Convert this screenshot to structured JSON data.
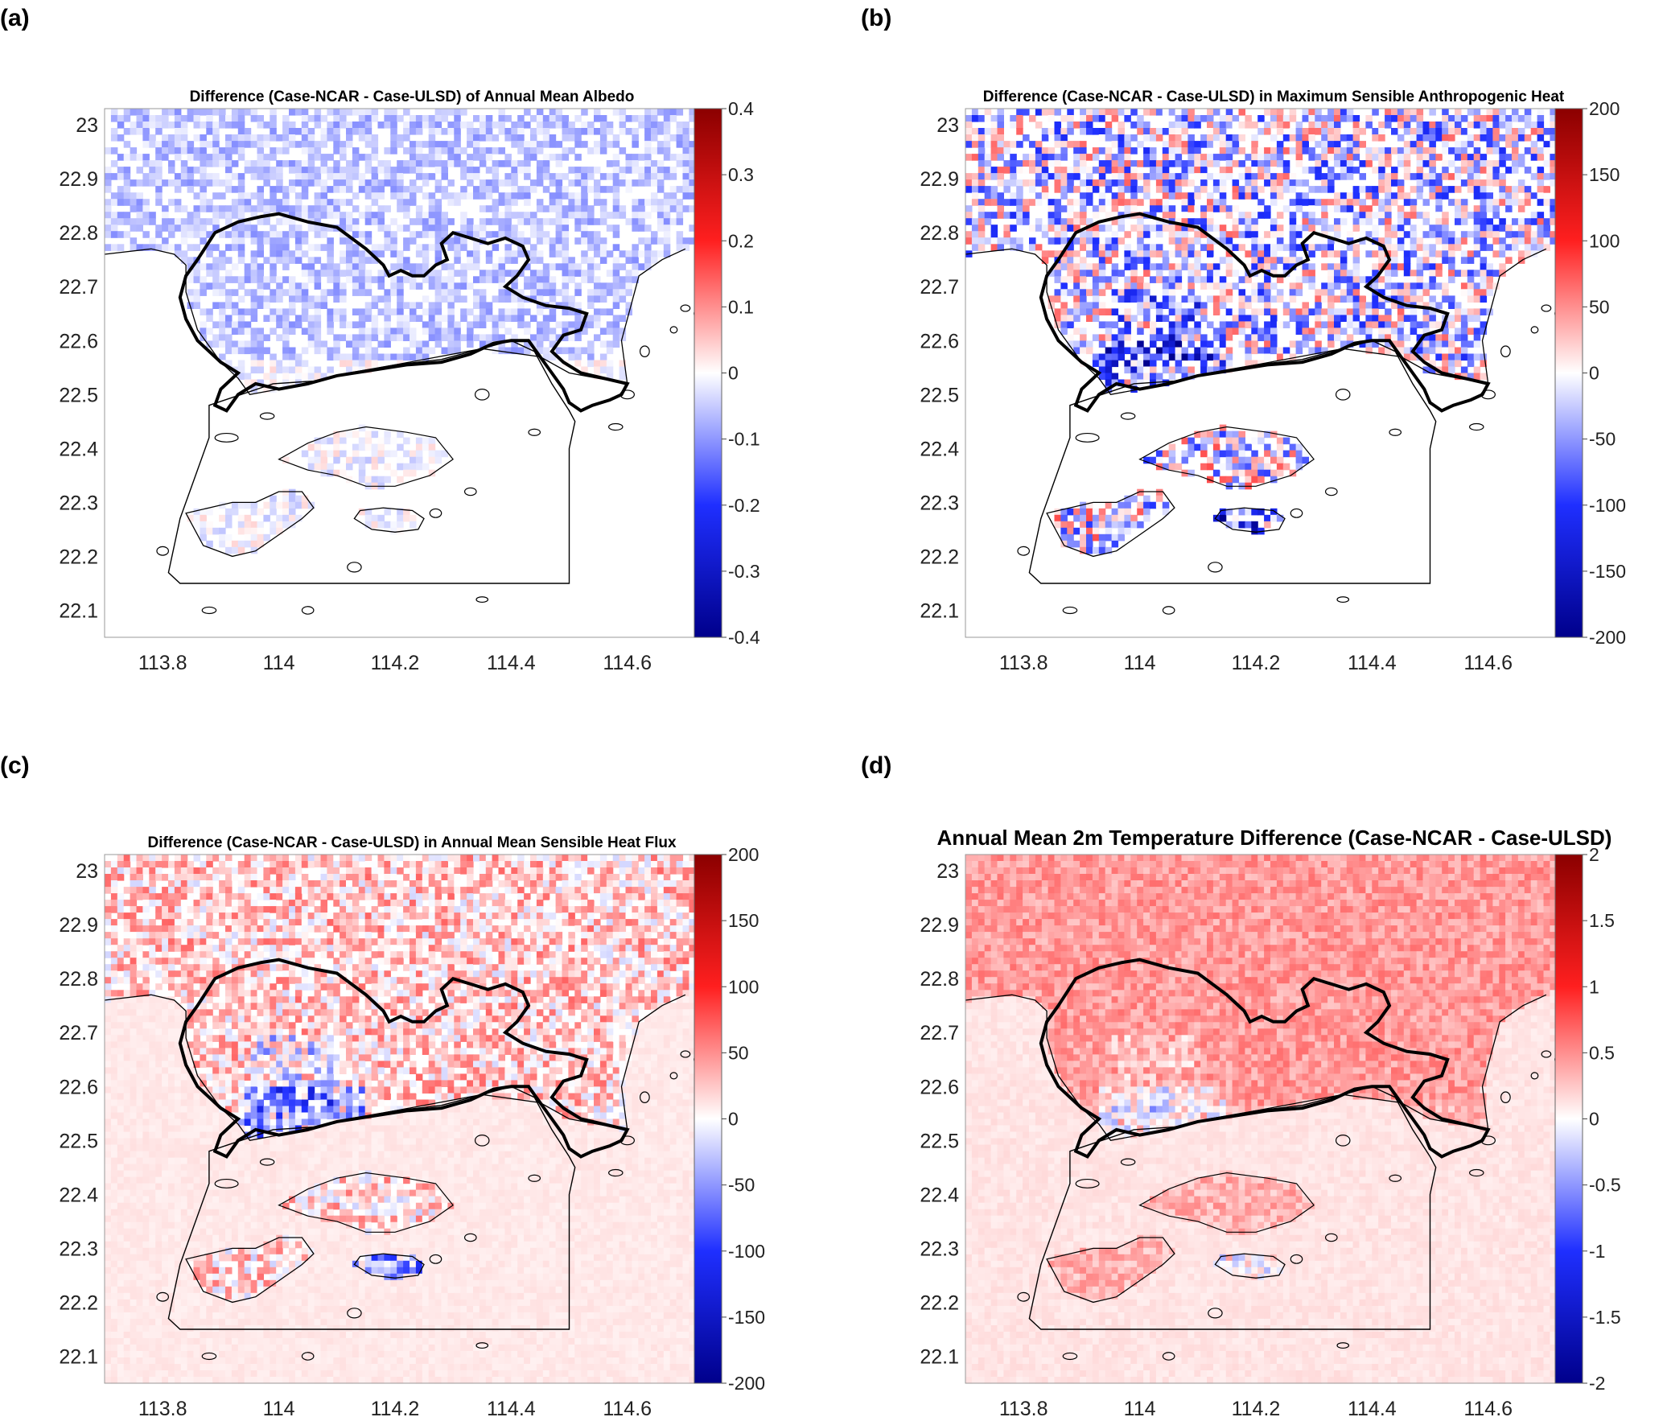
{
  "figure": {
    "colors": {
      "negative_max": "#00008b",
      "negative_mid": "#1f2fff",
      "neutral": "#ffffff",
      "positive_mid": "#ff1f1f",
      "positive_max": "#8b0000",
      "coast": "#000000"
    }
  },
  "chart_data": [
    {
      "type": "heatmap",
      "panel_label": "(a)",
      "title": "Difference (Case-NCAR - Case-ULSD) of Annual Mean Albedo",
      "xlabel": "",
      "ylabel": "",
      "x_ticks": [
        "113.8",
        "114",
        "114.2",
        "114.4",
        "114.6"
      ],
      "y_ticks": [
        "23",
        "22.9",
        "22.8",
        "22.7",
        "22.6",
        "22.5",
        "22.4",
        "22.3",
        "22.2",
        "22.1"
      ],
      "xlim": [
        113.7,
        114.75
      ],
      "ylim": [
        22.05,
        23.03
      ],
      "colorbar": {
        "ticks": [
          "0.4",
          "0.3",
          "0.2",
          "0.1",
          "0",
          "-0.1",
          "-0.2",
          "-0.3",
          "-0.4"
        ],
        "range": [
          -0.4,
          0.4
        ]
      },
      "pattern": {
        "land_bias": -0.06,
        "amplitude": 0.05,
        "hk_bias": -0.01,
        "extreme_hotspot": 0.0,
        "sea_value": 0.0,
        "neutral_fraction": 0.35
      }
    },
    {
      "type": "heatmap",
      "panel_label": "(b)",
      "title": "Difference (Case-NCAR - Case-ULSD) in Maximum Sensible Anthropogenic Heat",
      "xlabel": "",
      "ylabel": "",
      "x_ticks": [
        "113.8",
        "114",
        "114.2",
        "114.4",
        "114.6"
      ],
      "y_ticks": [
        "23",
        "22.9",
        "22.8",
        "22.7",
        "22.6",
        "22.5",
        "22.4",
        "22.3",
        "22.2",
        "22.1"
      ],
      "xlim": [
        113.7,
        114.75
      ],
      "ylim": [
        22.05,
        23.03
      ],
      "colorbar": {
        "ticks": [
          "200",
          "150",
          "100",
          "50",
          "0",
          "-50",
          "-100",
          "-150",
          "-200"
        ],
        "range": [
          -200,
          200
        ]
      },
      "pattern": {
        "land_bias": -20,
        "amplitude": 90,
        "hk_bias": -10,
        "extreme_hotspot": -200,
        "sea_value": 0,
        "neutral_fraction": 0.3
      }
    },
    {
      "type": "heatmap",
      "panel_label": "(c)",
      "title": "Difference (Case-NCAR - Case-ULSD) in Annual Mean Sensible Heat Flux",
      "xlabel": "",
      "ylabel": "",
      "x_ticks": [
        "113.8",
        "114",
        "114.2",
        "114.4",
        "114.6"
      ],
      "y_ticks": [
        "23",
        "22.9",
        "22.8",
        "22.7",
        "22.6",
        "22.5",
        "22.4",
        "22.3",
        "22.2",
        "22.1"
      ],
      "xlim": [
        113.7,
        114.75
      ],
      "ylim": [
        22.05,
        23.03
      ],
      "colorbar": {
        "ticks": [
          "200",
          "150",
          "100",
          "50",
          "0",
          "-50",
          "-100",
          "-150",
          "-200"
        ],
        "range": [
          -200,
          200
        ]
      },
      "pattern": {
        "land_bias": 25,
        "amplitude": 45,
        "hk_bias": 20,
        "extreme_hotspot": -180,
        "sea_value": 10,
        "neutral_fraction": 0.15
      }
    },
    {
      "type": "heatmap",
      "panel_label": "(d)",
      "title": "Annual Mean 2m Temperature  Difference (Case-NCAR - Case-ULSD)",
      "xlabel": "",
      "ylabel": "",
      "x_ticks": [
        "113.8",
        "114",
        "114.2",
        "114.4",
        "114.6"
      ],
      "y_ticks": [
        "23",
        "22.9",
        "22.8",
        "22.7",
        "22.6",
        "22.5",
        "22.4",
        "22.3",
        "22.2",
        "22.1"
      ],
      "xlim": [
        113.7,
        114.75
      ],
      "ylim": [
        22.05,
        23.03
      ],
      "colorbar": {
        "ticks": [
          "2",
          "1.5",
          "1",
          "0.5",
          "0",
          "-0.5",
          "-1",
          "-1.5",
          "-2"
        ],
        "range": [
          -2,
          2
        ]
      },
      "pattern": {
        "land_bias": 0.45,
        "amplitude": 0.2,
        "hk_bias": 0.35,
        "extreme_hotspot": -1.0,
        "sea_value": 0.12,
        "neutral_fraction": 0.02
      }
    }
  ]
}
